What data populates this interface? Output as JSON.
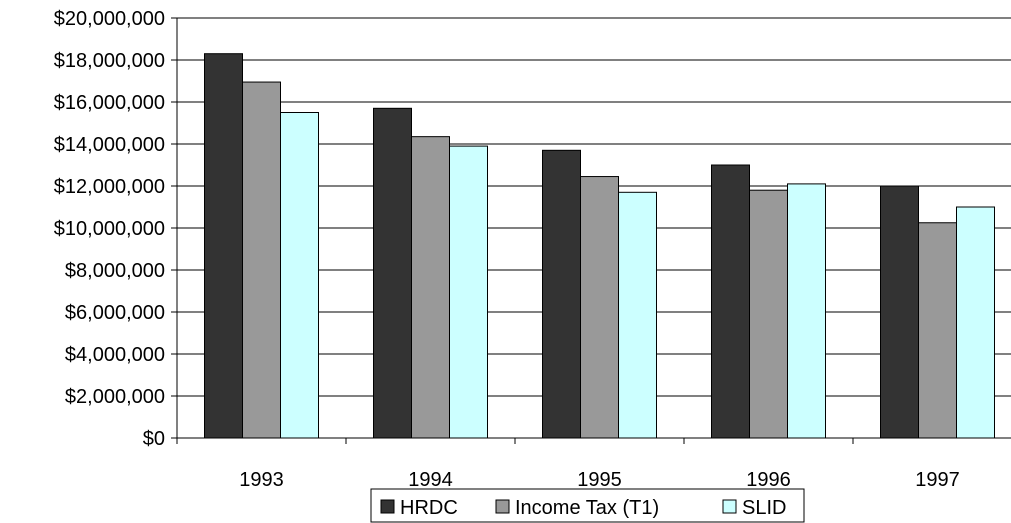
{
  "chart_data": {
    "type": "bar",
    "categories": [
      "1993",
      "1994",
      "1995",
      "1996",
      "1997"
    ],
    "series": [
      {
        "name": "HRDC",
        "values": [
          18300000,
          15700000,
          13700000,
          13000000,
          12000000
        ],
        "color": "#333333"
      },
      {
        "name": "Income Tax (T1)",
        "values": [
          16950000,
          14350000,
          12450000,
          11800000,
          10250000
        ],
        "color": "#999999"
      },
      {
        "name": "SLID",
        "values": [
          15500000,
          13900000,
          11700000,
          12100000,
          11000000
        ],
        "color": "#ccffff"
      }
    ],
    "ylim": [
      0,
      20000000
    ],
    "yticks": [
      0,
      2000000,
      4000000,
      6000000,
      8000000,
      10000000,
      12000000,
      14000000,
      16000000,
      18000000,
      20000000
    ],
    "ytick_labels": [
      "$0",
      "$2,000,000",
      "$4,000,000",
      "$6,000,000",
      "$8,000,000",
      "$10,000,000",
      "$12,000,000",
      "$14,000,000",
      "$16,000,000",
      "$18,000,000",
      "$20,000,000"
    ],
    "grid": true,
    "legend_position": "bottom",
    "title": "",
    "xlabel": "",
    "ylabel": ""
  }
}
